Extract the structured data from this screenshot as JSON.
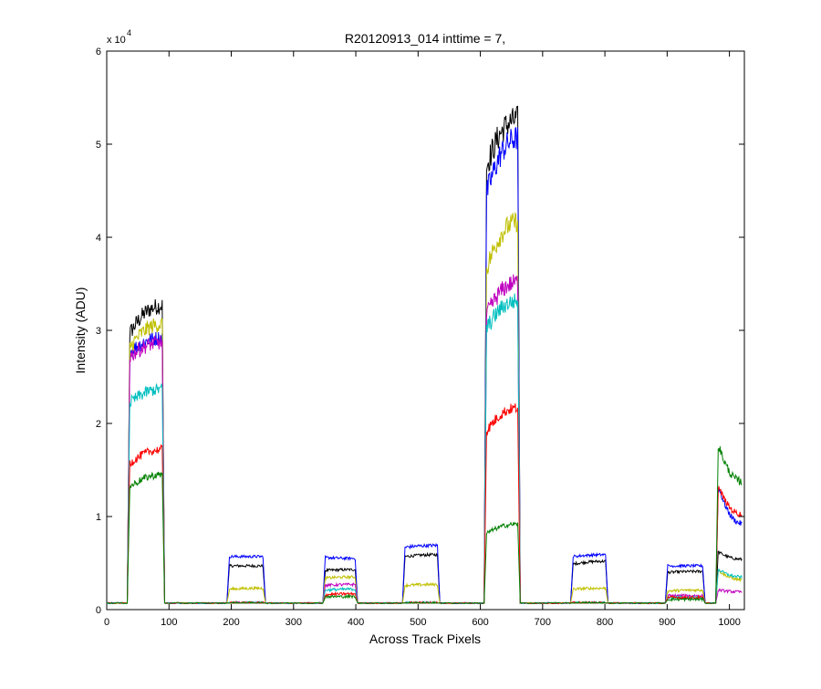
{
  "chart_data": {
    "type": "line",
    "title": "R20120913_014 inttime = 7,",
    "xlabel": "Across Track Pixels",
    "ylabel": "Intensity (ADU)",
    "exponent_label": "x 10",
    "exponent_power": "4",
    "xlim": [
      0,
      1024
    ],
    "ylim": [
      0,
      60000
    ],
    "xticks": [
      0,
      100,
      200,
      300,
      400,
      500,
      600,
      700,
      800,
      900,
      1000
    ],
    "yticks": [
      0,
      10000,
      20000,
      30000,
      40000,
      50000,
      60000
    ],
    "ytick_labels": [
      "0",
      "1",
      "2",
      "3",
      "4",
      "5",
      "6"
    ],
    "grid": false,
    "baseline": 700,
    "segments": [
      {
        "x0": 33,
        "x1": 93
      },
      {
        "x0": 193,
        "x1": 255
      },
      {
        "x0": 347,
        "x1": 403
      },
      {
        "x0": 475,
        "x1": 535
      },
      {
        "x0": 606,
        "x1": 664
      },
      {
        "x0": 745,
        "x1": 805
      },
      {
        "x0": 897,
        "x1": 961
      },
      {
        "x0": 978,
        "x1": 1024
      }
    ],
    "series": [
      {
        "color": "#000000",
        "levels": [
          [
            29000,
            32000
          ],
          [
            4000,
            4000
          ],
          [
            3500,
            3600
          ],
          [
            5000,
            5200
          ],
          [
            47000,
            52000
          ],
          [
            4200,
            4500
          ],
          [
            3300,
            3400
          ],
          [
            5500,
            4700
          ]
        ]
      },
      {
        "color": "#0000ff",
        "levels": [
          [
            27000,
            28500
          ],
          [
            5000,
            5000
          ],
          [
            4900,
            4800
          ],
          [
            6000,
            6200
          ],
          [
            44000,
            50000
          ],
          [
            5000,
            5200
          ],
          [
            4000,
            4000
          ],
          [
            12500,
            8500
          ]
        ]
      },
      {
        "color": "#bfbf00",
        "levels": [
          [
            27500,
            30000
          ],
          [
            1500,
            1600
          ],
          [
            2700,
            2800
          ],
          [
            1900,
            2000
          ],
          [
            36000,
            41000
          ],
          [
            1500,
            1600
          ],
          [
            1300,
            1400
          ],
          [
            3500,
            2500
          ]
        ]
      },
      {
        "color": "#bf00bf",
        "levels": [
          [
            26500,
            28000
          ],
          [
            0,
            0
          ],
          [
            1900,
            2000
          ],
          [
            0,
            0
          ],
          [
            31000,
            34500
          ],
          [
            0,
            0
          ],
          [
            800,
            800
          ],
          [
            1400,
            1200
          ]
        ]
      },
      {
        "color": "#00bfbf",
        "levels": [
          [
            21500,
            23000
          ],
          [
            0,
            0
          ],
          [
            1400,
            1500
          ],
          [
            0,
            0
          ],
          [
            29500,
            32500
          ],
          [
            0,
            0
          ],
          [
            600,
            600
          ],
          [
            3600,
            2800
          ]
        ]
      },
      {
        "color": "#ff0000",
        "levels": [
          [
            15000,
            16500
          ],
          [
            0,
            0
          ],
          [
            900,
            1000
          ],
          [
            0,
            0
          ],
          [
            18500,
            21000
          ],
          [
            0,
            0
          ],
          [
            600,
            600
          ],
          [
            12500,
            9500
          ]
        ]
      },
      {
        "color": "#008000",
        "levels": [
          [
            12500,
            13800
          ],
          [
            0,
            0
          ],
          [
            700,
            700
          ],
          [
            0,
            0
          ],
          [
            7500,
            8500
          ],
          [
            0,
            0
          ],
          [
            400,
            400
          ],
          [
            17000,
            13000
          ]
        ]
      }
    ]
  }
}
